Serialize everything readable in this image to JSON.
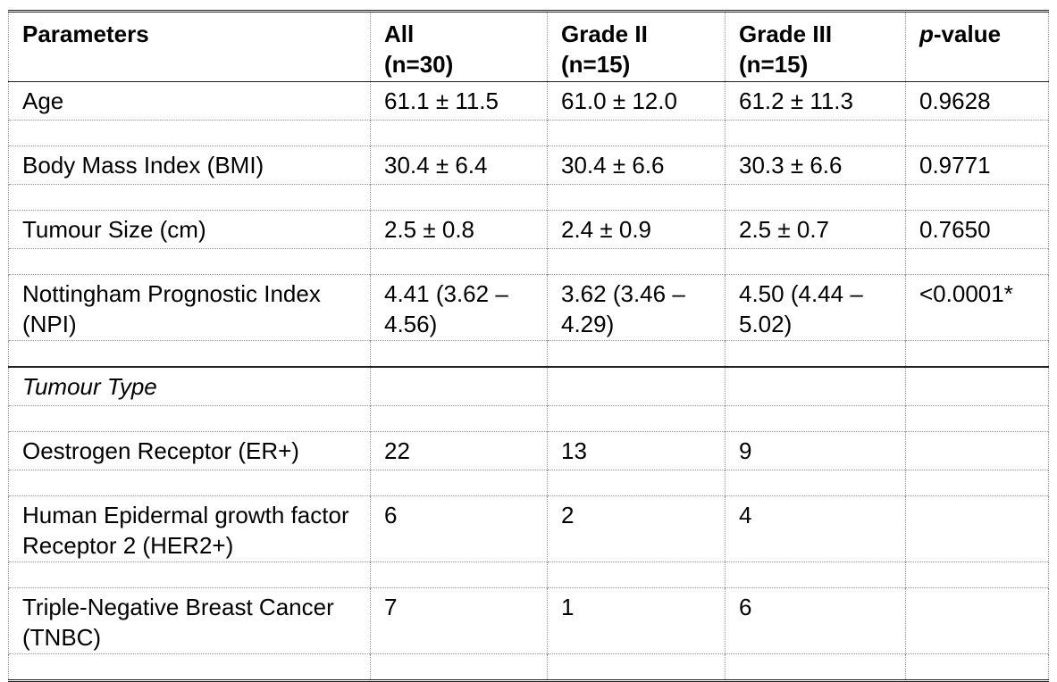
{
  "header": {
    "parameters": "Parameters",
    "all": "All",
    "all_n": "(n=30)",
    "grade2": "Grade II",
    "grade2_n": "(n=15)",
    "grade3": "Grade III",
    "grade3_n": "(n=15)",
    "pvalue_p": "p",
    "pvalue_rest": "-value"
  },
  "rows": [
    {
      "label": "Age",
      "all": "61.1 ± 11.5",
      "g2": "61.0 ± 12.0",
      "g3": "61.2 ± 11.3",
      "p": "0.9628"
    },
    {
      "label": "Body Mass Index (BMI)",
      "all": "30.4 ± 6.4",
      "g2": "30.4 ± 6.6",
      "g3": "30.3 ± 6.6",
      "p": "0.9771"
    },
    {
      "label": "Tumour Size (cm)",
      "all": "2.5 ± 0.8",
      "g2": "2.4 ± 0.9",
      "g3": "2.5 ± 0.7",
      "p": "0.7650"
    },
    {
      "label": "Nottingham Prognostic Index (NPI)",
      "all": "4.41 (3.62 – 4.56)",
      "g2": "3.62 (3.46 – 4.29)",
      "g3": "4.50 (4.44 – 5.02)",
      "p": "<0.0001*"
    }
  ],
  "section_title": "Tumour Type",
  "type_rows": [
    {
      "label": "Oestrogen Receptor (ER+)",
      "all": "22",
      "g2": "13",
      "g3": "9",
      "p": ""
    },
    {
      "label": "Human Epidermal growth factor Receptor 2 (HER2+)",
      "all": "6",
      "g2": "2",
      "g3": "4",
      "p": ""
    },
    {
      "label": "Triple-Negative Breast Cancer (TNBC)",
      "all": "7",
      "g2": "1",
      "g3": "6",
      "p": ""
    }
  ]
}
